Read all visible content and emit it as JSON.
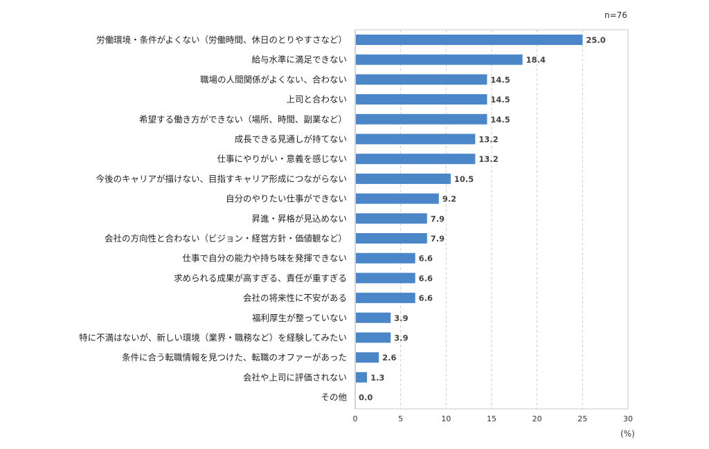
{
  "chart_data": {
    "type": "bar",
    "orientation": "horizontal",
    "sample_note": "n=76",
    "unit_label": "(%)",
    "categories": [
      "労働環境・条件がよくない（労働時間、休日のとりやすさなど）",
      "給与水準に満足できない",
      "職場の人間関係がよくない、合わない",
      "上司と合わない",
      "希望する働き方ができない（場所、時間、副業など）",
      "成長できる見通しが持てない",
      "仕事にやりがい・意義を感じない",
      "今後のキャリアが描けない、目指すキャリア形成につながらない",
      "自分のやりたい仕事ができない",
      "昇進・昇格が見込めない",
      "会社の方向性と合わない（ビジョン・経営方針・価値観など）",
      "仕事で自分の能力や持ち味を発揮できない",
      "求められる成果が高すぎる、責任が重すぎる",
      "会社の将来性に不安がある",
      "福利厚生が整っていない",
      "特に不満はないが、新しい環境（業界・職務など）を経験してみたい",
      "条件に合う転職情報を見つけた、転職のオファーがあった",
      "会社や上司に評価されない",
      "その他"
    ],
    "values": [
      25.0,
      18.4,
      14.5,
      14.5,
      14.5,
      13.2,
      13.2,
      10.5,
      9.2,
      7.9,
      7.9,
      6.6,
      6.6,
      6.6,
      3.9,
      3.9,
      2.6,
      1.3,
      0.0
    ],
    "value_labels": [
      "25.0",
      "18.4",
      "14.5",
      "14.5",
      "14.5",
      "13.2",
      "13.2",
      "10.5",
      "9.2",
      "7.9",
      "7.9",
      "6.6",
      "6.6",
      "6.6",
      "3.9",
      "3.9",
      "2.6",
      "1.3",
      "0.0"
    ],
    "xlim": [
      0,
      30
    ],
    "xticks": [
      0,
      5,
      10,
      15,
      20,
      25,
      30
    ],
    "xtick_labels": [
      "0",
      "5",
      "10",
      "15",
      "20",
      "25",
      "30"
    ],
    "grid": true,
    "bar_color": "#4a86c8"
  }
}
